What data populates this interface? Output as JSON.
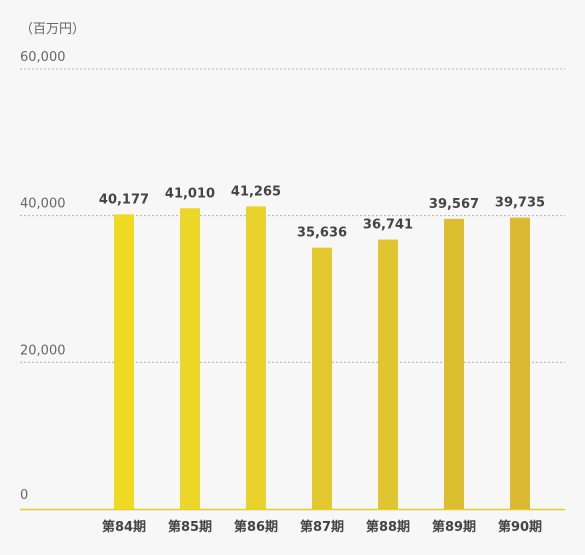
{
  "chart_data": {
    "type": "bar",
    "unit_label": "（百万円）",
    "categories": [
      "第84期",
      "第85期",
      "第86期",
      "第87期",
      "第88期",
      "第89期",
      "第90期"
    ],
    "values": [
      40177,
      41010,
      41265,
      35636,
      36741,
      39567,
      39735
    ],
    "value_labels": [
      "40,177",
      "41,010",
      "41,265",
      "35,636",
      "36,741",
      "39,567",
      "39,735"
    ],
    "y_ticks": [
      0,
      20000,
      40000,
      60000
    ],
    "y_tick_labels": [
      "0",
      "20,000",
      "40,000",
      "60,000"
    ],
    "ylim": [
      0,
      60000
    ],
    "grid": true,
    "bar_colors": [
      "#efd923",
      "#ecd628",
      "#e9d22b",
      "#e3c92e",
      "#e0c430",
      "#ddbe31",
      "#dbba32"
    ]
  },
  "colors": {
    "background": "#f7f7f7",
    "grid": "#b5b5b5",
    "baseline": "#e6cd2c",
    "text": "#555555"
  }
}
